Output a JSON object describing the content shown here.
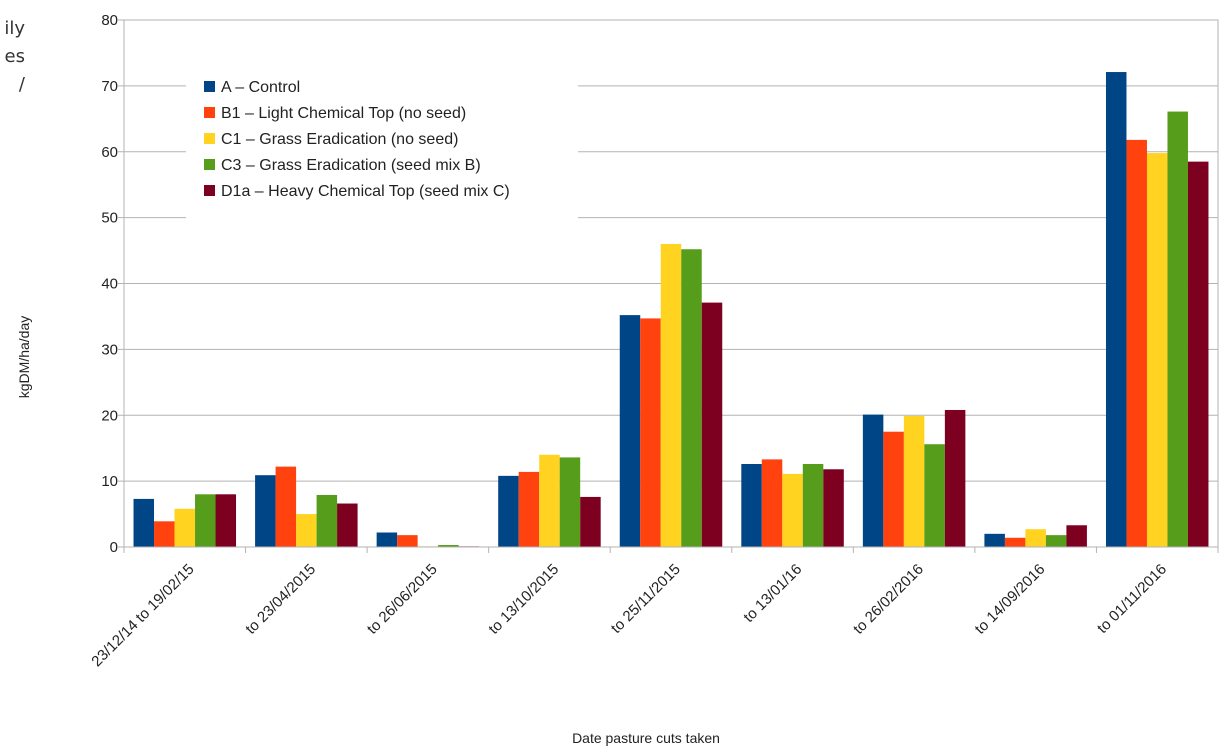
{
  "clipped_text": [
    "ily",
    "es",
    "/"
  ],
  "chart_data": {
    "type": "bar",
    "title": "",
    "xlabel": "Date pasture cuts taken",
    "ylabel": "kgDM/ha/day",
    "ylim": [
      0,
      80
    ],
    "yticks": [
      0,
      10,
      20,
      30,
      40,
      50,
      60,
      70,
      80
    ],
    "grid": true,
    "legend_position": "top-left",
    "categories": [
      "23/12/14 to 19/02/15",
      "to 23/04/2015",
      "to 26/06/2015",
      "to 13/10/2015",
      "to 25/11/2015",
      "to 13/01/16",
      "to 26/02/2016",
      "to 14/09/2016",
      "to 01/11/2016"
    ],
    "series": [
      {
        "name": "A – Control",
        "color": "#004586",
        "values": [
          7.3,
          10.9,
          2.2,
          10.8,
          35.2,
          12.6,
          20.1,
          2.0,
          72.1
        ]
      },
      {
        "name": "B1 – Light Chemical Top (no seed)",
        "color": "#ff420e",
        "values": [
          3.9,
          12.2,
          1.8,
          11.4,
          34.7,
          13.3,
          17.5,
          1.4,
          61.8
        ]
      },
      {
        "name": "C1 – Grass Eradication (no seed)",
        "color": "#ffd320",
        "values": [
          5.8,
          5.0,
          0.1,
          14.0,
          46.0,
          11.1,
          19.9,
          2.7,
          59.8
        ]
      },
      {
        "name": "C3 – Grass Eradication (seed mix B)",
        "color": "#579d1c",
        "values": [
          8.0,
          7.9,
          0.3,
          13.6,
          45.2,
          12.6,
          15.6,
          1.8,
          66.1
        ]
      },
      {
        "name": "D1a – Heavy Chemical Top (seed mix C)",
        "color": "#7e0021",
        "values": [
          8.0,
          6.6,
          0.1,
          7.6,
          37.1,
          11.8,
          20.8,
          3.3,
          58.5
        ]
      }
    ]
  }
}
